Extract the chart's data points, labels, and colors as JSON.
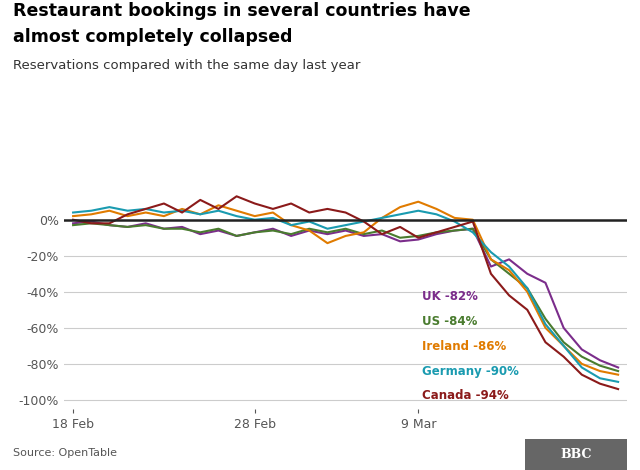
{
  "title_line1": "Restaurant bookings in several countries have",
  "title_line2": "almost completely collapsed",
  "subtitle": "Reservations compared with the same day last year",
  "source": "Source: OpenTable",
  "ylim": [
    -105,
    15
  ],
  "yticks": [
    0,
    -20,
    -40,
    -60,
    -80,
    -100
  ],
  "ytick_labels": [
    "0%",
    "-20%",
    "-40%",
    "-60%",
    "-80%",
    "-100%"
  ],
  "x_tick_positions": [
    0,
    10,
    19
  ],
  "x_tick_labels": [
    "18 Feb",
    "28 Feb",
    "9 Mar"
  ],
  "countries": [
    "UK",
    "US",
    "Ireland",
    "Germany",
    "Canada"
  ],
  "colors": {
    "UK": "#7b2d8b",
    "US": "#4a7c2f",
    "Ireland": "#e07b00",
    "Germany": "#1a9bb0",
    "Canada": "#8b1a1a"
  },
  "legend_labels": [
    "UK -82%",
    "US -84%",
    "Ireland -86%",
    "Germany -90%",
    "Canada -94%"
  ],
  "legend_colors": [
    "#7b2d8b",
    "#4a7c2f",
    "#e07b00",
    "#1a9bb0",
    "#8b1a1a"
  ],
  "data": {
    "UK": [
      -2,
      -1,
      -3,
      -4,
      -2,
      -5,
      -4,
      -8,
      -6,
      -9,
      -7,
      -5,
      -9,
      -6,
      -8,
      -6,
      -9,
      -8,
      -12,
      -11,
      -8,
      -6,
      -5,
      -26,
      -22,
      -30,
      -35,
      -60,
      -72,
      -78,
      -82
    ],
    "US": [
      -3,
      -2,
      -3,
      -4,
      -3,
      -5,
      -5,
      -7,
      -5,
      -9,
      -7,
      -6,
      -8,
      -5,
      -7,
      -5,
      -8,
      -6,
      -10,
      -9,
      -7,
      -6,
      -5,
      -22,
      -30,
      -38,
      -55,
      -68,
      -76,
      -81,
      -84
    ],
    "Ireland": [
      2,
      3,
      5,
      2,
      4,
      2,
      6,
      3,
      8,
      5,
      2,
      4,
      -3,
      -6,
      -13,
      -9,
      -7,
      1,
      7,
      10,
      6,
      1,
      0,
      -22,
      -28,
      -40,
      -60,
      -70,
      -80,
      -84,
      -86
    ],
    "Germany": [
      4,
      5,
      7,
      5,
      6,
      4,
      5,
      3,
      5,
      2,
      0,
      1,
      -3,
      -1,
      -5,
      -3,
      -1,
      1,
      3,
      5,
      3,
      -1,
      -7,
      -18,
      -26,
      -38,
      -58,
      -70,
      -82,
      -88,
      -90
    ],
    "Canada": [
      0,
      -2,
      -2,
      3,
      6,
      9,
      4,
      11,
      6,
      13,
      9,
      6,
      9,
      4,
      6,
      4,
      -1,
      -8,
      -4,
      -10,
      -7,
      -4,
      -1,
      -30,
      -42,
      -50,
      -68,
      -76,
      -86,
      -91,
      -94
    ]
  },
  "n_points": 31,
  "bg_color": "#ffffff",
  "grid_color": "#cccccc",
  "zero_line_color": "#222222",
  "tick_color": "#555555"
}
